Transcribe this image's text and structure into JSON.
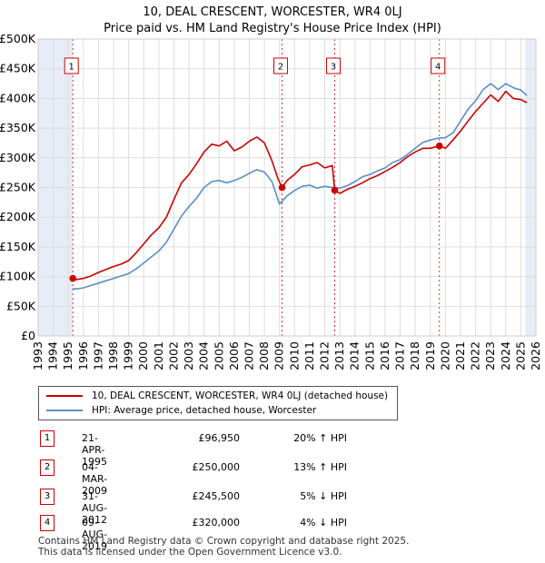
{
  "title": {
    "line1": "10, DEAL CRESCENT, WORCESTER, WR4 0LJ",
    "line2": "Price paid vs. HM Land Registry's House Price Index (HPI)"
  },
  "colors": {
    "price_line": "#cc0000",
    "hpi_line": "#5b8ec7",
    "grid": "#dddddd",
    "shade": "#dde6f2",
    "marker_border": "#cc0000"
  },
  "chart_data": {
    "type": "line",
    "title": "Price paid vs. HM Land Registry's House Price Index (HPI)",
    "xlim": [
      1993,
      2026
    ],
    "ylim": [
      0,
      500000
    ],
    "x_ticks": [
      "1993",
      "1994",
      "1995",
      "1996",
      "1997",
      "1998",
      "1999",
      "2000",
      "2001",
      "2002",
      "2003",
      "2004",
      "2005",
      "2006",
      "2007",
      "2008",
      "2009",
      "2010",
      "2011",
      "2012",
      "2013",
      "2014",
      "2015",
      "2016",
      "2017",
      "2018",
      "2019",
      "2020",
      "2021",
      "2022",
      "2023",
      "2024",
      "2025",
      "2026"
    ],
    "y_ticks": [
      {
        "value": 0,
        "label": "£0"
      },
      {
        "value": 50000,
        "label": "£50K"
      },
      {
        "value": 100000,
        "label": "£100K"
      },
      {
        "value": 150000,
        "label": "£150K"
      },
      {
        "value": 200000,
        "label": "£200K"
      },
      {
        "value": 250000,
        "label": "£250K"
      },
      {
        "value": 300000,
        "label": "£300K"
      },
      {
        "value": 350000,
        "label": "£350K"
      },
      {
        "value": 400000,
        "label": "£400K"
      },
      {
        "value": 450000,
        "label": "£450K"
      },
      {
        "value": 500000,
        "label": "£500K"
      }
    ],
    "shaded_ranges": [
      [
        1993.0,
        1995.3
      ],
      [
        2025.3,
        2026.0
      ]
    ],
    "series": [
      {
        "name": "10, DEAL CRESCENT, WORCESTER, WR4 0LJ (detached house)",
        "color": "#cc0000",
        "x": [
          1995.3,
          1995.5,
          1996,
          1996.5,
          1997,
          1997.5,
          1998,
          1998.5,
          1999,
          1999.5,
          2000,
          2000.5,
          2001,
          2001.5,
          2002,
          2002.5,
          2003,
          2003.5,
          2004,
          2004.5,
          2005,
          2005.5,
          2006,
          2006.5,
          2007,
          2007.5,
          2008,
          2008.5,
          2008.9,
          2009.17,
          2009.5,
          2010,
          2010.5,
          2011,
          2011.5,
          2012,
          2012.5,
          2012.66,
          2013,
          2013.5,
          2014,
          2014.5,
          2015,
          2015.5,
          2016,
          2016.5,
          2017,
          2017.5,
          2018,
          2018.5,
          2019,
          2019.6,
          2020,
          2020.5,
          2021,
          2021.5,
          2022,
          2022.5,
          2023,
          2023.5,
          2024,
          2024.5,
          2025,
          2025.4
        ],
        "y": [
          96950,
          95000,
          97000,
          101000,
          107000,
          112000,
          117000,
          121000,
          127000,
          140000,
          155000,
          170000,
          182000,
          200000,
          230000,
          258000,
          272000,
          290000,
          310000,
          323000,
          320000,
          328000,
          312000,
          318000,
          328000,
          335000,
          325000,
          295000,
          265000,
          250000,
          262000,
          272000,
          285000,
          288000,
          292000,
          283000,
          287000,
          245500,
          240000,
          247000,
          252000,
          258000,
          265000,
          270000,
          277000,
          284000,
          292000,
          302000,
          310000,
          316000,
          316000,
          320000,
          316000,
          330000,
          345000,
          362000,
          378000,
          392000,
          406000,
          395000,
          412000,
          400000,
          398000,
          393000
        ]
      },
      {
        "name": "HPI: Average price, detached house, Worcester",
        "color": "#5b8ec7",
        "x": [
          1995.3,
          1995.5,
          1996,
          1996.5,
          1997,
          1997.5,
          1998,
          1998.5,
          1999,
          1999.5,
          2000,
          2000.5,
          2001,
          2001.5,
          2002,
          2002.5,
          2003,
          2003.5,
          2004,
          2004.5,
          2005,
          2005.5,
          2006,
          2006.5,
          2007,
          2007.5,
          2008,
          2008.5,
          2009,
          2009.5,
          2010,
          2010.5,
          2011,
          2011.5,
          2012,
          2012.5,
          2013,
          2013.5,
          2014,
          2014.5,
          2015,
          2015.5,
          2016,
          2016.5,
          2017,
          2017.5,
          2018,
          2018.5,
          2019,
          2019.5,
          2020,
          2020.5,
          2021,
          2021.5,
          2022,
          2022.5,
          2023,
          2023.5,
          2024,
          2024.5,
          2025,
          2025.4
        ],
        "y": [
          80000,
          79000,
          81000,
          85000,
          89000,
          93000,
          97000,
          101000,
          105000,
          113000,
          123000,
          133000,
          143000,
          158000,
          180000,
          202000,
          218000,
          232000,
          250000,
          260000,
          262000,
          258000,
          262000,
          267000,
          274000,
          280000,
          276000,
          260000,
          222000,
          236000,
          245000,
          252000,
          254000,
          249000,
          252000,
          250000,
          249000,
          253000,
          260000,
          268000,
          272000,
          278000,
          283000,
          292000,
          297000,
          306000,
          316000,
          326000,
          330000,
          333000,
          334000,
          342000,
          362000,
          382000,
          396000,
          415000,
          425000,
          415000,
          425000,
          418000,
          414000,
          405000
        ]
      }
    ],
    "sales": [
      {
        "label": "1",
        "x": 1995.3,
        "price": 96950
      },
      {
        "label": "2",
        "x": 2009.17,
        "price": 250000
      },
      {
        "label": "3",
        "x": 2012.66,
        "price": 245500
      },
      {
        "label": "4",
        "x": 2019.6,
        "price": 320000
      }
    ]
  },
  "legend": {
    "price_label": "10, DEAL CRESCENT, WORCESTER, WR4 0LJ (detached house)",
    "hpi_label": "HPI: Average price, detached house, Worcester"
  },
  "transactions": [
    {
      "num": "1",
      "date": "21-APR-1995",
      "price": "£96,950",
      "hpi": "20% ↑ HPI"
    },
    {
      "num": "2",
      "date": "04-MAR-2009",
      "price": "£250,000",
      "hpi": "13% ↑ HPI"
    },
    {
      "num": "3",
      "date": "31-AUG-2012",
      "price": "£245,500",
      "hpi": "5% ↓ HPI"
    },
    {
      "num": "4",
      "date": "09-AUG-2019",
      "price": "£320,000",
      "hpi": "4% ↓ HPI"
    }
  ],
  "footer": {
    "line1": "Contains HM Land Registry data © Crown copyright and database right 2025.",
    "line2": "This data is licensed under the Open Government Licence v3.0."
  }
}
